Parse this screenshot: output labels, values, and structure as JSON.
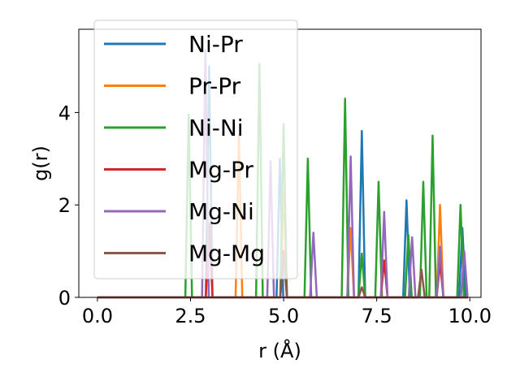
{
  "chart_data": {
    "type": "line",
    "xlabel": "r (Å)",
    "ylabel": "g(r)",
    "xlim": [
      -0.5,
      10.3
    ],
    "ylim": [
      0,
      5.8
    ],
    "x_ticks": [
      0.0,
      2.5,
      5.0,
      7.5,
      10.0
    ],
    "x_tick_labels": [
      "0.0",
      "2.5",
      "5.0",
      "7.5",
      "10.0"
    ],
    "y_ticks": [
      0,
      2,
      4
    ],
    "y_tick_labels": [
      "0",
      "2",
      "4"
    ],
    "grid": false,
    "legend_position": "upper-left",
    "series": [
      {
        "name": "Ni-Pr",
        "color": "#1f77b4",
        "peaks": [
          [
            3.0,
            5.0
          ],
          [
            4.9,
            3.0
          ],
          [
            7.1,
            3.6
          ],
          [
            8.3,
            2.1
          ],
          [
            9.8,
            1.5
          ]
        ]
      },
      {
        "name": "Pr-Pr",
        "color": "#ff7f0e",
        "peaks": [
          [
            3.8,
            3.5
          ],
          [
            5.0,
            2.3
          ],
          [
            6.8,
            1.5
          ],
          [
            9.2,
            2.0
          ]
        ]
      },
      {
        "name": "Ni-Ni",
        "color": "#2ca02c",
        "peaks": [
          [
            2.45,
            3.95
          ],
          [
            4.35,
            5.05
          ],
          [
            5.0,
            3.75
          ],
          [
            5.65,
            3.0
          ],
          [
            6.65,
            4.3
          ],
          [
            7.1,
            0.95
          ],
          [
            7.55,
            2.5
          ],
          [
            8.35,
            1.35
          ],
          [
            8.75,
            2.5
          ],
          [
            9.0,
            3.5
          ],
          [
            9.75,
            2.0
          ]
        ]
      },
      {
        "name": "Mg-Pr",
        "color": "#d62728",
        "peaks": [
          [
            3.0,
            1.6
          ],
          [
            5.0,
            1.0
          ],
          [
            7.7,
            0.8
          ],
          [
            9.2,
            0.75
          ]
        ]
      },
      {
        "name": "Mg-Ni",
        "color": "#9467bd",
        "peaks": [
          [
            2.9,
            5.35
          ],
          [
            4.65,
            2.95
          ],
          [
            5.8,
            1.4
          ],
          [
            6.8,
            3.05
          ],
          [
            7.7,
            1.85
          ],
          [
            8.45,
            1.3
          ],
          [
            9.2,
            1.1
          ],
          [
            9.85,
            1.0
          ]
        ]
      },
      {
        "name": "Mg-Mg",
        "color": "#8c564b",
        "peaks": [
          [
            5.0,
            0.9
          ],
          [
            7.1,
            0.22
          ],
          [
            8.7,
            0.6
          ]
        ]
      }
    ]
  }
}
